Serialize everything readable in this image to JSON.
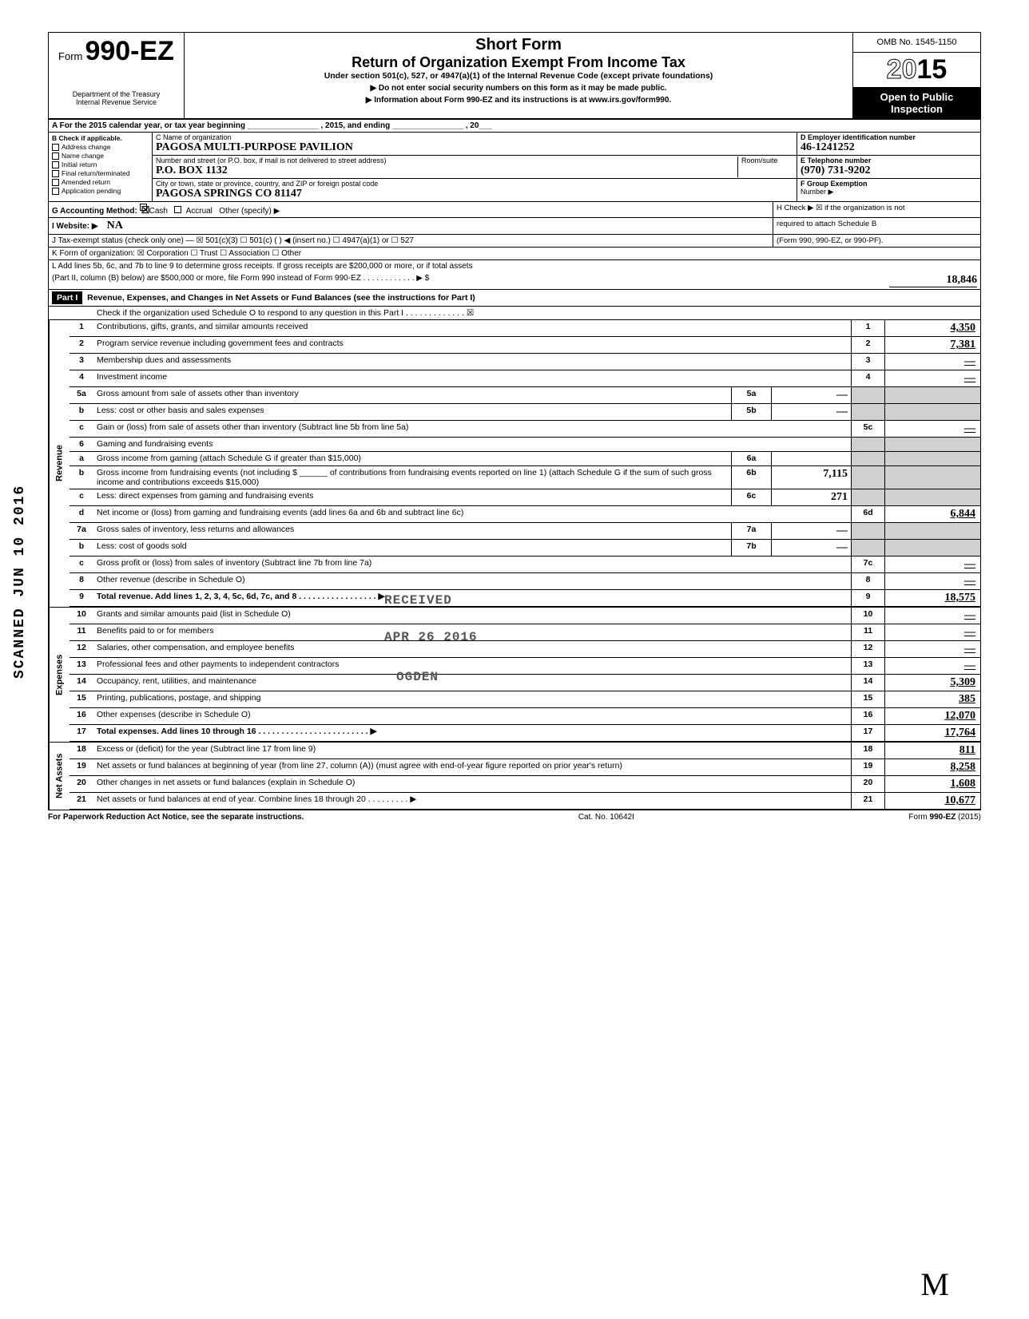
{
  "side_stamp": "SCANNED JUN 10 2016",
  "header": {
    "form_prefix": "Form",
    "form_number": "990-EZ",
    "short_form": "Short Form",
    "title": "Return of Organization Exempt From Income Tax",
    "subtitle": "Under section 501(c), 527, or 4947(a)(1) of the Internal Revenue Code (except private foundations)",
    "instr1": "▶ Do not enter social security numbers on this form as it may be made public.",
    "instr2": "▶ Information about Form 990-EZ and its instructions is at www.irs.gov/form990.",
    "dept": "Department of the Treasury\nInternal Revenue Service",
    "omb": "OMB No. 1545-1150",
    "year": "2015",
    "inspection1": "Open to Public",
    "inspection2": "Inspection"
  },
  "row_a": "A For the 2015 calendar year, or tax year beginning ________________ , 2015, and ending ________________ , 20___",
  "section_b": {
    "label": "B Check if applicable.",
    "options": [
      "Address change",
      "Name change",
      "Initial return",
      "Final return/terminated",
      "Amended return",
      "Application pending"
    ],
    "c_label": "C Name of organization",
    "c_val": "PAGOSA MULTI-PURPOSE PAVILION",
    "addr_label": "Number and street (or P.O. box, if mail is not delivered to street address)",
    "addr_val": "P.O. BOX 1132",
    "room_label": "Room/suite",
    "city_label": "City or town, state or province, country, and ZIP or foreign postal code",
    "city_val": "PAGOSA SPRINGS          CO          81147",
    "d_label": "D Employer identification number",
    "d_val": "46-1241252",
    "e_label": "E Telephone number",
    "e_val": "(970) 731-9202",
    "f_label": "F Group Exemption",
    "f_label2": "Number ▶"
  },
  "g_row": {
    "g": "G Accounting Method:",
    "cash": "Cash",
    "accrual": "Accrual",
    "other": "Other (specify) ▶",
    "h": "H Check ▶ ☒ if the organization is not",
    "h2": "required to attach Schedule B",
    "h3": "(Form 990, 990-EZ, or 990-PF)."
  },
  "i_row": {
    "i": "I  Website: ▶",
    "i_val": "NA"
  },
  "j_row": "J Tax-exempt status (check only one) — ☒ 501(c)(3)  ☐ 501(c) (    ) ◀ (insert no.) ☐ 4947(a)(1) or  ☐ 527",
  "k_row": "K Form of organization:  ☒ Corporation    ☐ Trust    ☐ Association    ☐ Other",
  "l_row": "L Add lines 5b, 6c, and 7b to line 9 to determine gross receipts. If gross receipts are $200,000 or more, or if total assets",
  "l_row2": "(Part II, column (B) below) are $500,000 or more, file Form 990 instead of Form 990-EZ . . . . . . . . . . . . ▶  $",
  "l_val": "18,846",
  "part1": {
    "label": "Part I",
    "title": "Revenue, Expenses, and Changes in Net Assets or Fund Balances (see the instructions for Part I)",
    "check": "Check if the organization used Schedule O to respond to any question in this Part I . . . . . . . . . . . . . ☒"
  },
  "sections": {
    "revenue_label": "Revenue",
    "expenses_label": "Expenses",
    "netassets_label": "Net Assets"
  },
  "lines": [
    {
      "n": "1",
      "d": "Contributions, gifts, grants, and similar amounts received",
      "rn": "1",
      "rv": "4,350"
    },
    {
      "n": "2",
      "d": "Program service revenue including government fees and contracts",
      "rn": "2",
      "rv": "7,381"
    },
    {
      "n": "3",
      "d": "Membership dues and assessments",
      "rn": "3",
      "rv": "—"
    },
    {
      "n": "4",
      "d": "Investment income",
      "rn": "4",
      "rv": "—"
    },
    {
      "n": "5a",
      "d": "Gross amount from sale of assets other than inventory",
      "sn": "5a",
      "sv": "—"
    },
    {
      "n": "b",
      "d": "Less: cost or other basis and sales expenses",
      "sn": "5b",
      "sv": "—"
    },
    {
      "n": "c",
      "d": "Gain or (loss) from sale of assets other than inventory (Subtract line 5b from line 5a)",
      "rn": "5c",
      "rv": "—"
    },
    {
      "n": "6",
      "d": "Gaming and fundraising events"
    },
    {
      "n": "a",
      "d": "Gross income from gaming (attach Schedule G if greater than $15,000)",
      "sn": "6a",
      "sv": ""
    },
    {
      "n": "b",
      "d": "Gross income from fundraising events (not including  $ ______ of contributions from fundraising events reported on line 1) (attach Schedule G if the sum of such gross income and contributions exceeds $15,000)",
      "sn": "6b",
      "sv": "7,115"
    },
    {
      "n": "c",
      "d": "Less: direct expenses from gaming and fundraising events",
      "sn": "6c",
      "sv": "271"
    },
    {
      "n": "d",
      "d": "Net income or (loss) from gaming and fundraising events (add lines 6a and 6b and subtract line 6c)",
      "rn": "6d",
      "rv": "6,844"
    },
    {
      "n": "7a",
      "d": "Gross sales of inventory, less returns and allowances",
      "sn": "7a",
      "sv": "—"
    },
    {
      "n": "b",
      "d": "Less: cost of goods sold",
      "sn": "7b",
      "sv": "—"
    },
    {
      "n": "c",
      "d": "Gross profit or (loss) from sales of inventory (Subtract line 7b from line 7a)",
      "rn": "7c",
      "rv": "—"
    },
    {
      "n": "8",
      "d": "Other revenue (describe in Schedule O)",
      "rn": "8",
      "rv": "—"
    },
    {
      "n": "9",
      "d": "Total revenue. Add lines 1, 2, 3, 4, 5c, 6d, 7c, and 8   . . . . . . . . . . . . . . . . . ▶",
      "rn": "9",
      "rv": "18,575",
      "bold": true
    }
  ],
  "exp_lines": [
    {
      "n": "10",
      "d": "Grants and similar amounts paid (list in Schedule O)",
      "rn": "10",
      "rv": "—"
    },
    {
      "n": "11",
      "d": "Benefits paid to or for members",
      "rn": "11",
      "rv": "—"
    },
    {
      "n": "12",
      "d": "Salaries, other compensation, and employee benefits",
      "rn": "12",
      "rv": "—"
    },
    {
      "n": "13",
      "d": "Professional fees and other payments to independent contractors",
      "rn": "13",
      "rv": "—"
    },
    {
      "n": "14",
      "d": "Occupancy, rent, utilities, and maintenance",
      "rn": "14",
      "rv": "5,309"
    },
    {
      "n": "15",
      "d": "Printing, publications, postage, and shipping",
      "rn": "15",
      "rv": "385"
    },
    {
      "n": "16",
      "d": "Other expenses (describe in Schedule O)",
      "rn": "16",
      "rv": "12,070"
    },
    {
      "n": "17",
      "d": "Total expenses. Add lines 10 through 16  . . . . . . . . . . . . . . . . . . . . . . . . ▶",
      "rn": "17",
      "rv": "17,764",
      "bold": true
    }
  ],
  "na_lines": [
    {
      "n": "18",
      "d": "Excess or (deficit) for the year (Subtract line 17 from line 9)",
      "rn": "18",
      "rv": "811"
    },
    {
      "n": "19",
      "d": "Net assets or fund balances at beginning of year (from line 27, column (A)) (must agree with end-of-year figure reported on prior year's return)",
      "rn": "19",
      "rv": "8,258"
    },
    {
      "n": "20",
      "d": "Other changes in net assets or fund balances (explain in Schedule O)",
      "rn": "20",
      "rv": "1,608"
    },
    {
      "n": "21",
      "d": "Net assets or fund balances at end of year. Combine lines 18 through 20  . . . . . . . . . ▶",
      "rn": "21",
      "rv": "10,677"
    }
  ],
  "stamps": {
    "received": "RECEIVED",
    "date": "APR 26 2016",
    "ogden": "OGDEN"
  },
  "footer": {
    "left": "For Paperwork Reduction Act Notice, see the separate instructions.",
    "mid": "Cat. No. 10642I",
    "right": "Form 990-EZ (2015)"
  }
}
